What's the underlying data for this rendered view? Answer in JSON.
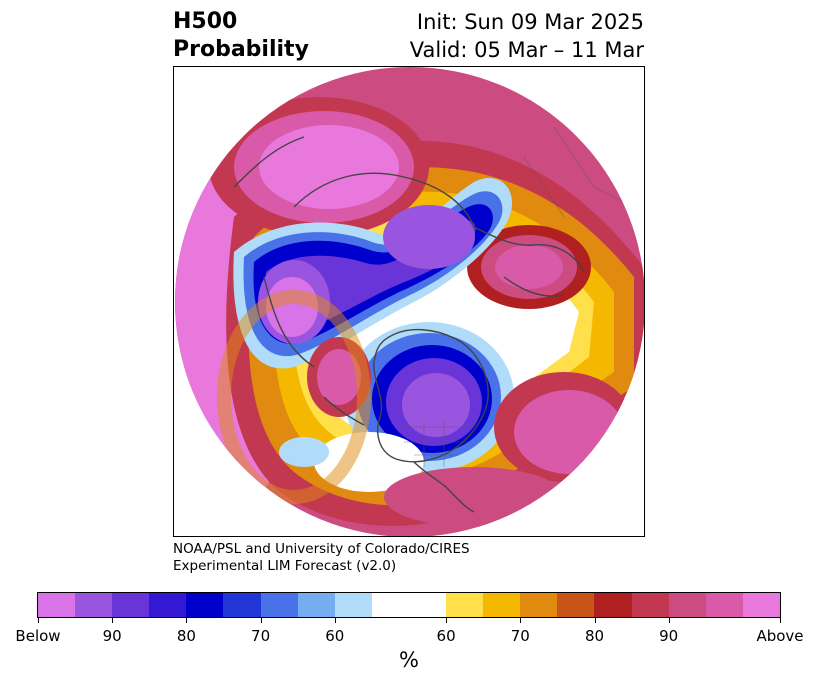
{
  "header": {
    "title_line1": "H500",
    "title_line2": "Probability",
    "init_line": "Init: Sun 09 Mar 2025",
    "valid_line": "Valid: 05 Mar – 11 Mar"
  },
  "credit": {
    "line1": "NOAA/PSL and University of Colorado/CIRES",
    "line2": "Experimental LIM Forecast (v2.0)"
  },
  "colorbar": {
    "colors": [
      "#d873e8",
      "#9a55e0",
      "#6a35d8",
      "#3418d4",
      "#0000cc",
      "#2236d8",
      "#4a72e8",
      "#74aef0",
      "#b0dcfa",
      "#ffffff",
      "#ffe04a",
      "#f5b800",
      "#e08a10",
      "#c85418",
      "#b02020",
      "#c23850",
      "#cc4c82",
      "#d85aa8",
      "#e878dc"
    ],
    "tick_labels": [
      "Below",
      "90",
      "80",
      "70",
      "60",
      "60",
      "70",
      "80",
      "90",
      "Above"
    ],
    "unit_label": "%"
  },
  "map": {
    "projection": "north-polar-stereographic"
  }
}
